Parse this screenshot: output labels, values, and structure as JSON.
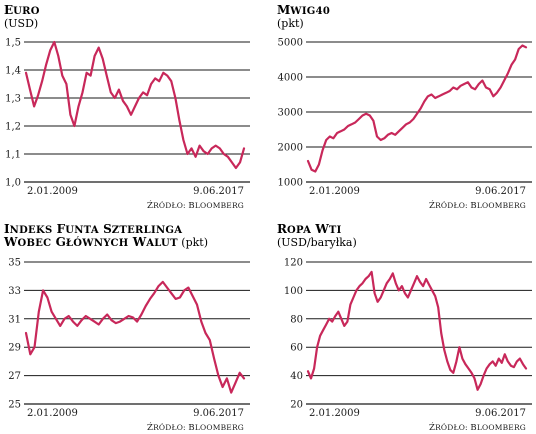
{
  "colors": {
    "series": "#c8285a",
    "grid": "#1a1a1a",
    "text": "#1a1a1a"
  },
  "chart_data": [
    {
      "type": "line",
      "title_lines": [
        "Euro"
      ],
      "unit": "(USD)",
      "x_start_label": "2.01.2009",
      "x_end_label": "9.06.2017",
      "ticks": [
        "1,0",
        "1,1",
        "1,2",
        "1,3",
        "1,4",
        "1,5"
      ],
      "ylim": [
        1.0,
        1.5
      ],
      "source": "Źródło: Bloomberg",
      "series": [
        {
          "values": [
            1.39,
            1.33,
            1.27,
            1.31,
            1.36,
            1.42,
            1.47,
            1.5,
            1.45,
            1.38,
            1.35,
            1.24,
            1.2,
            1.27,
            1.32,
            1.39,
            1.38,
            1.45,
            1.48,
            1.44,
            1.38,
            1.32,
            1.3,
            1.33,
            1.29,
            1.27,
            1.24,
            1.27,
            1.3,
            1.32,
            1.31,
            1.35,
            1.37,
            1.36,
            1.39,
            1.38,
            1.36,
            1.3,
            1.22,
            1.15,
            1.1,
            1.12,
            1.09,
            1.13,
            1.11,
            1.1,
            1.12,
            1.13,
            1.12,
            1.1,
            1.09,
            1.07,
            1.05,
            1.07,
            1.12
          ]
        }
      ]
    },
    {
      "type": "line",
      "title_lines": [
        "mWIG40"
      ],
      "unit": "(pkt)",
      "x_start_label": "2.01.2009",
      "x_end_label": "9.06.2017",
      "ticks": [
        "1000",
        "2000",
        "3000",
        "4000",
        "5000"
      ],
      "ylim": [
        1000,
        5000
      ],
      "source": "Źródło: Bloomberg",
      "series": [
        {
          "values": [
            1600,
            1350,
            1300,
            1500,
            1900,
            2200,
            2300,
            2250,
            2400,
            2450,
            2500,
            2600,
            2650,
            2700,
            2800,
            2900,
            2950,
            2900,
            2750,
            2300,
            2200,
            2250,
            2350,
            2400,
            2350,
            2450,
            2550,
            2650,
            2700,
            2800,
            2950,
            3100,
            3300,
            3450,
            3500,
            3400,
            3450,
            3500,
            3550,
            3600,
            3700,
            3650,
            3750,
            3800,
            3850,
            3700,
            3650,
            3800,
            3900,
            3700,
            3650,
            3450,
            3550,
            3700,
            3900,
            4100,
            4350,
            4500,
            4800,
            4900,
            4850
          ]
        }
      ]
    },
    {
      "type": "line",
      "title_lines": [
        "Indeks funta szterlinga",
        "wobec głównych walut"
      ],
      "unit": "(pkt)",
      "x_start_label": "2.01.2009",
      "x_end_label": "9.06.2017",
      "ticks": [
        "25",
        "27",
        "29",
        "31",
        "33",
        "35"
      ],
      "ylim": [
        25,
        35
      ],
      "source": "Źródło: Bloomberg",
      "series": [
        {
          "values": [
            30.0,
            28.5,
            29.0,
            31.5,
            33.0,
            32.5,
            31.5,
            31.0,
            30.5,
            31.0,
            31.2,
            30.8,
            30.5,
            30.9,
            31.2,
            31.0,
            30.8,
            30.6,
            31.0,
            31.3,
            30.9,
            30.7,
            30.8,
            31.0,
            31.2,
            31.1,
            30.8,
            31.3,
            31.9,
            32.4,
            32.8,
            33.3,
            33.6,
            33.2,
            32.8,
            32.4,
            32.5,
            33.0,
            33.2,
            32.6,
            32.0,
            30.8,
            30.0,
            29.5,
            28.2,
            27.0,
            26.2,
            26.8,
            25.8,
            26.5,
            27.2,
            26.8
          ]
        }
      ]
    },
    {
      "type": "line",
      "title_lines": [
        "Ropa WTI"
      ],
      "unit": "(USD/baryłka)",
      "x_start_label": "2.01.2009",
      "x_end_label": "9.06.2017",
      "ticks": [
        "20",
        "40",
        "60",
        "80",
        "100",
        "120"
      ],
      "ylim": [
        20,
        120
      ],
      "source": "Źródło: Bloomberg",
      "series": [
        {
          "values": [
            43,
            38,
            45,
            60,
            68,
            72,
            76,
            80,
            78,
            82,
            85,
            80,
            75,
            78,
            90,
            95,
            100,
            103,
            105,
            108,
            110,
            113,
            98,
            92,
            95,
            100,
            105,
            108,
            112,
            105,
            100,
            103,
            98,
            95,
            100,
            105,
            110,
            106,
            103,
            108,
            104,
            100,
            96,
            88,
            70,
            58,
            50,
            44,
            42,
            50,
            60,
            52,
            48,
            45,
            42,
            38,
            30,
            34,
            40,
            45,
            48,
            50,
            47,
            52,
            49,
            55,
            50,
            47,
            46,
            50,
            52,
            48,
            45
          ]
        }
      ]
    }
  ]
}
